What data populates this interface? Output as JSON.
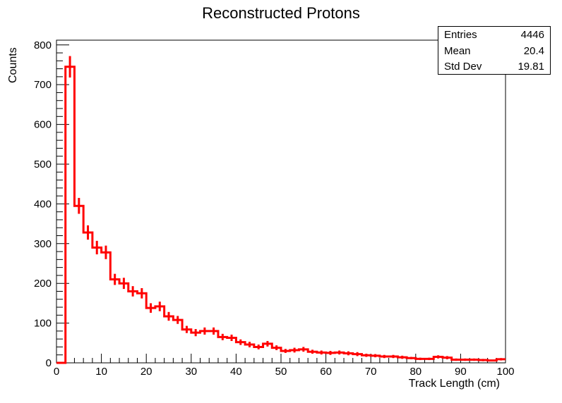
{
  "chart_data": {
    "type": "histogram",
    "title": "Reconstructed Protons",
    "xlabel": "Track Length (cm)",
    "ylabel": "Counts",
    "xlim": [
      0,
      100
    ],
    "ylim": [
      0,
      812
    ],
    "xticks": [
      0,
      10,
      20,
      30,
      40,
      50,
      60,
      70,
      80,
      90,
      100
    ],
    "yticks": [
      0,
      100,
      200,
      300,
      400,
      500,
      600,
      700,
      800
    ],
    "bin_width": 2,
    "bin_edges_start": 0,
    "values": [
      0,
      745,
      395,
      328,
      290,
      278,
      210,
      200,
      180,
      175,
      138,
      142,
      117,
      108,
      84,
      76,
      80,
      80,
      65,
      63,
      52,
      46,
      40,
      48,
      38,
      30,
      32,
      34,
      28,
      26,
      25,
      26,
      24,
      22,
      19,
      18,
      16,
      16,
      14,
      12,
      10,
      10,
      15,
      13,
      8,
      8,
      8,
      7,
      6,
      9
    ],
    "errors": [
      0,
      27,
      20,
      18,
      17,
      17,
      14,
      14,
      13,
      13,
      12,
      12,
      11,
      10,
      9,
      9,
      9,
      9,
      8,
      8,
      7,
      7,
      6,
      7,
      6,
      5,
      6,
      6,
      5,
      5,
      5,
      5,
      5,
      5,
      4,
      4,
      4,
      4,
      4,
      3,
      3,
      3,
      4,
      4,
      3,
      3,
      3,
      3,
      2,
      3
    ],
    "color": "#ff0000",
    "stats": {
      "entries_label": "Entries",
      "entries": "4446",
      "mean_label": "Mean",
      "mean": "20.4",
      "std_label": "Std Dev",
      "std": "19.81"
    }
  }
}
